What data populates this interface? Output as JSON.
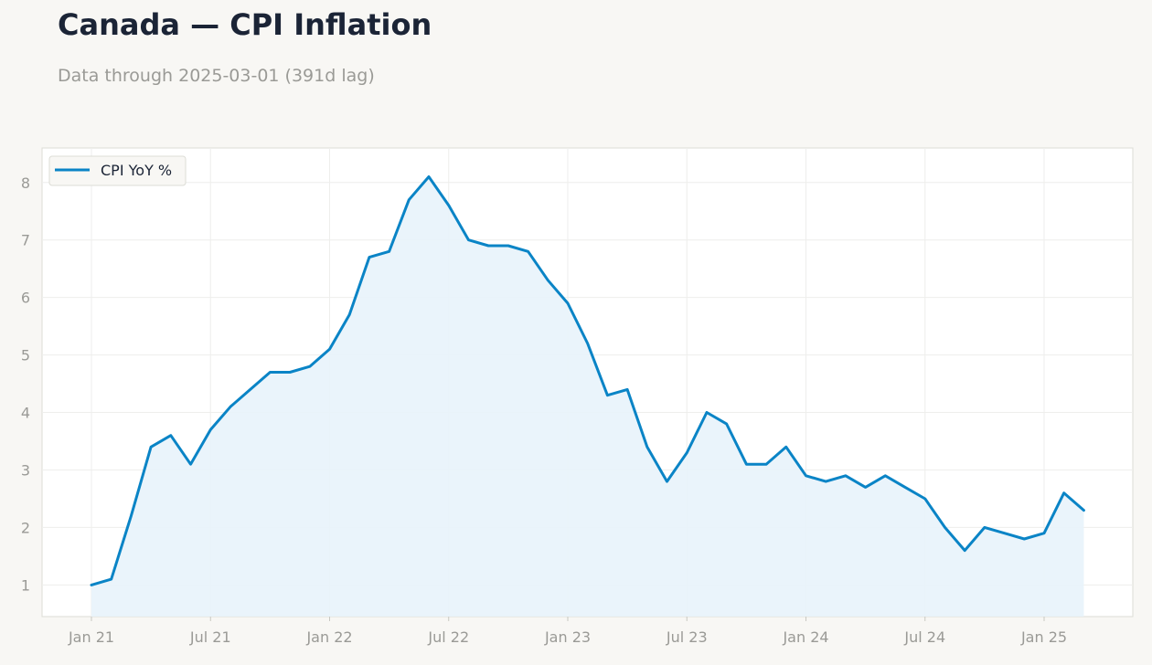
{
  "header": {
    "title": "Canada — CPI Inflation",
    "subtitle": "Data through 2025-03-01 (391d lag)"
  },
  "colors": {
    "line": "#0a84c6",
    "fill": "#e8f3fb",
    "text_primary": "#1b2436",
    "text_muted": "#9a9a96",
    "grid": "#eeeeec",
    "plot_border": "#dcdcd6",
    "background": "#f8f7f4",
    "plot_background": "#ffffff"
  },
  "chart_data": {
    "type": "area",
    "title": "Canada — CPI Inflation",
    "subtitle": "Data through 2025-03-01 (391d lag)",
    "xlabel": "",
    "ylabel": "",
    "legend": "top-left",
    "grid": true,
    "x": [
      "2021-01",
      "2021-02",
      "2021-03",
      "2021-04",
      "2021-05",
      "2021-06",
      "2021-07",
      "2021-08",
      "2021-09",
      "2021-10",
      "2021-11",
      "2021-12",
      "2022-01",
      "2022-02",
      "2022-03",
      "2022-04",
      "2022-05",
      "2022-06",
      "2022-07",
      "2022-08",
      "2022-09",
      "2022-10",
      "2022-11",
      "2022-12",
      "2023-01",
      "2023-02",
      "2023-03",
      "2023-04",
      "2023-05",
      "2023-06",
      "2023-07",
      "2023-08",
      "2023-09",
      "2023-10",
      "2023-11",
      "2023-12",
      "2024-01",
      "2024-02",
      "2024-03",
      "2024-04",
      "2024-05",
      "2024-06",
      "2024-07",
      "2024-08",
      "2024-09",
      "2024-10",
      "2024-11",
      "2024-12",
      "2025-01",
      "2025-02",
      "2025-03"
    ],
    "series": [
      {
        "name": "CPI YoY %",
        "values": [
          1.0,
          1.1,
          2.2,
          3.4,
          3.6,
          3.1,
          3.7,
          4.1,
          4.4,
          4.7,
          4.7,
          4.8,
          5.1,
          5.7,
          6.7,
          6.8,
          7.7,
          8.1,
          7.6,
          7.0,
          6.9,
          6.9,
          6.8,
          6.3,
          5.9,
          5.2,
          4.3,
          4.4,
          3.4,
          2.8,
          3.3,
          4.0,
          3.8,
          3.1,
          3.1,
          3.4,
          2.9,
          2.8,
          2.9,
          2.7,
          2.9,
          2.7,
          2.5,
          2.0,
          1.6,
          2.0,
          1.9,
          1.8,
          1.9,
          2.6,
          2.3
        ]
      }
    ],
    "xticks": [
      "Jan 21",
      "Jul 21",
      "Jan 22",
      "Jul 22",
      "Jan 23",
      "Jul 23",
      "Jan 24",
      "Jul 24",
      "Jan 25"
    ],
    "xtick_dates": [
      "2021-01",
      "2021-07",
      "2022-01",
      "2022-07",
      "2023-01",
      "2023-07",
      "2024-01",
      "2024-07",
      "2025-01"
    ],
    "yticks": [
      1,
      2,
      3,
      4,
      5,
      6,
      7,
      8
    ],
    "xlim": [
      "2020-10",
      "2025-06"
    ],
    "ylim": [
      0.45,
      8.6
    ]
  }
}
